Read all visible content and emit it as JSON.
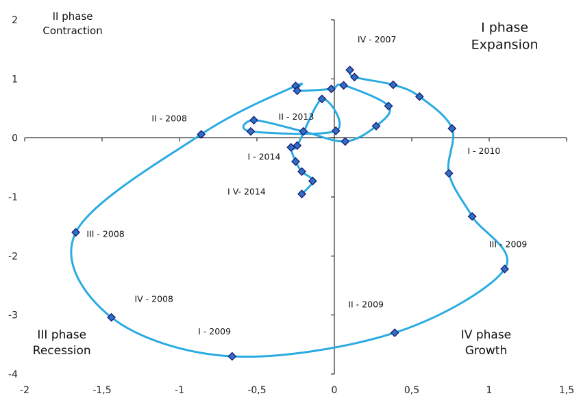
{
  "chart_data": {
    "type": "scatter",
    "title": "",
    "xlabel": "",
    "ylabel": "",
    "xlim": [
      -2,
      1.5
    ],
    "ylim": [
      -4,
      2
    ],
    "x_ticks": [
      "-2",
      "-1,5",
      "-1",
      "-0,5",
      "0",
      "0,5",
      "1",
      "1,5"
    ],
    "y_ticks": [
      "2",
      "1",
      "0",
      "-1",
      "-2",
      "-3",
      "-4"
    ],
    "grid": false,
    "line_color": "#29ABE2",
    "marker_fill": "#2E6FC7",
    "marker_edge": "#1A1A6E",
    "series": [
      {
        "points": [
          [
            0.1,
            1.15
          ],
          [
            0.13,
            1.03
          ],
          [
            0.38,
            0.9
          ],
          [
            0.55,
            0.7
          ],
          [
            0.76,
            0.16
          ],
          [
            0.74,
            -0.6
          ],
          [
            0.89,
            -1.33
          ],
          [
            1.1,
            -2.22
          ],
          [
            0.39,
            -3.3
          ],
          [
            -0.66,
            -3.7
          ],
          [
            -1.44,
            -3.04
          ],
          [
            -1.67,
            -1.6
          ],
          [
            -0.86,
            0.06
          ],
          [
            -0.25,
            0.88
          ],
          [
            -0.24,
            0.8
          ],
          [
            -0.02,
            0.83
          ],
          [
            0.06,
            0.89
          ],
          [
            0.35,
            0.54
          ],
          [
            0.27,
            0.2
          ],
          [
            0.07,
            -0.06
          ],
          [
            -0.2,
            0.11
          ],
          [
            -0.52,
            0.3
          ],
          [
            -0.54,
            0.11
          ],
          [
            0.01,
            0.12
          ],
          [
            -0.08,
            0.66
          ],
          [
            -0.24,
            -0.13
          ],
          [
            -0.28,
            -0.16
          ],
          [
            -0.25,
            -0.4
          ],
          [
            -0.21,
            -0.57
          ],
          [
            -0.14,
            -0.73
          ],
          [
            -0.21,
            -0.95
          ]
        ]
      }
    ],
    "annotations": [
      {
        "text": "IV - 2007",
        "x": 0.15,
        "y": 1.62
      },
      {
        "text": "II - 2008",
        "x": -1.18,
        "y": 0.28
      },
      {
        "text": "II - 2013",
        "x": -0.36,
        "y": 0.31
      },
      {
        "text": "I - 2014",
        "x": -0.56,
        "y": -0.37
      },
      {
        "text": "I V- 2014",
        "x": -0.69,
        "y": -0.96
      },
      {
        "text": "I - 2010",
        "x": 0.86,
        "y": -0.27
      },
      {
        "text": "III - 2008",
        "x": -1.6,
        "y": -1.68
      },
      {
        "text": "III - 2009",
        "x": 1.0,
        "y": -1.85
      },
      {
        "text": "II - 2009",
        "x": 0.09,
        "y": -2.87
      },
      {
        "text": "IV - 2008",
        "x": -1.29,
        "y": -2.78
      },
      {
        "text": "I - 2009",
        "x": -0.88,
        "y": -3.33
      }
    ],
    "phases": [
      {
        "lines": [
          "II phase",
          "Contraction"
        ],
        "x": -1.69,
        "y": 2.0
      },
      {
        "lines": [
          "I phase",
          "Expansion"
        ],
        "x": 1.1,
        "y": 1.8
      },
      {
        "lines": [
          "III phase",
          "Recession"
        ],
        "x": -1.76,
        "y": -3.4
      },
      {
        "lines": [
          "IV phase",
          "Growth"
        ],
        "x": 0.98,
        "y": -3.4
      }
    ]
  }
}
